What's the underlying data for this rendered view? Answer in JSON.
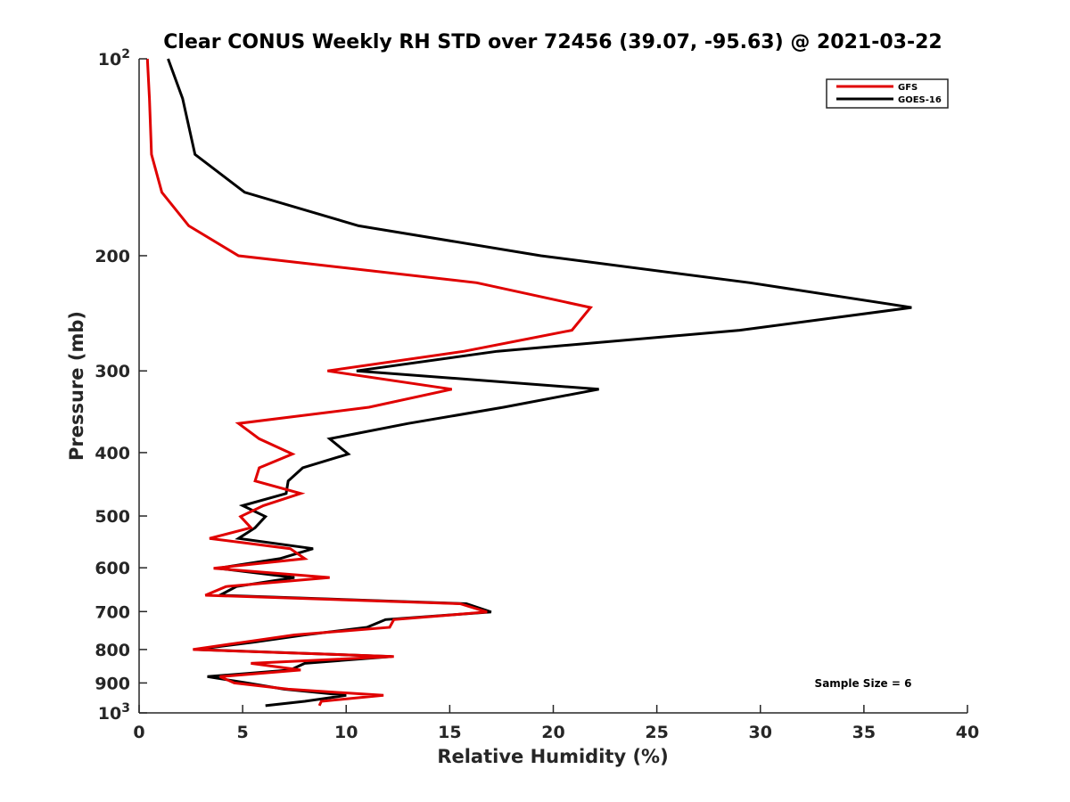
{
  "chart_data": {
    "type": "line",
    "title": "Clear CONUS Weekly RH STD over 72456 (39.07, -95.63) @ 2021-03-22",
    "xlabel": "Relative Humidity (%)",
    "ylabel": "Pressure (mb)",
    "xlim": [
      0,
      40
    ],
    "ylim": [
      100,
      1000
    ],
    "yscale": "log",
    "yreversed": true,
    "grid": false,
    "xticks": [
      0,
      5,
      10,
      15,
      20,
      25,
      30,
      35,
      40
    ],
    "xtick_labels": [
      "0",
      "5",
      "10",
      "15",
      "20",
      "25",
      "30",
      "35",
      "40"
    ],
    "yticks": [
      100,
      200,
      300,
      400,
      500,
      600,
      700,
      800,
      900,
      1000
    ],
    "ytick_labels": [
      "10^2",
      "200",
      "300",
      "400",
      "500",
      "600",
      "700",
      "800",
      "900",
      "10^3"
    ],
    "legend": {
      "placement": "top-right",
      "entries": [
        "GFS",
        "GOES-16"
      ]
    },
    "annotation": "Sample Size = 6",
    "series": [
      {
        "name": "GFS",
        "color": "#e00000",
        "pressure": [
          100,
          115,
          140,
          160,
          180,
          200,
          220,
          240,
          260,
          280,
          300,
          320,
          341,
          361,
          381,
          402,
          422,
          442,
          462,
          482,
          501,
          521,
          541,
          561,
          581,
          601,
          621,
          641,
          661,
          681,
          701,
          720,
          740,
          760,
          780,
          800,
          820,
          840,
          860,
          880,
          900,
          920,
          940,
          960,
          975
        ],
        "values": [
          0.4,
          0.5,
          0.6,
          1.1,
          2.4,
          4.8,
          16.3,
          21.8,
          20.9,
          15.7,
          9.1,
          15.1,
          11.1,
          4.8,
          5.8,
          7.4,
          5.8,
          5.6,
          7.8,
          6.0,
          4.9,
          5.4,
          3.4,
          7.3,
          8.0,
          3.6,
          9.2,
          4.2,
          3.2,
          15.5,
          16.8,
          12.3,
          12.1,
          7.5,
          5.0,
          2.6,
          12.3,
          5.4,
          7.8,
          3.9,
          4.6,
          7.2,
          11.8,
          8.8,
          8.7
        ],
        "values_note": "approximate"
      },
      {
        "name": "GOES-16",
        "color": "#000000",
        "pressure": [
          100,
          115,
          140,
          160,
          180,
          200,
          220,
          240,
          260,
          280,
          300,
          320,
          341,
          361,
          381,
          402,
          422,
          442,
          462,
          482,
          501,
          521,
          541,
          561,
          581,
          601,
          621,
          641,
          661,
          681,
          701,
          720,
          740,
          760,
          780,
          800,
          820,
          840,
          860,
          880,
          900,
          920,
          940,
          960,
          975
        ],
        "values": [
          1.4,
          2.1,
          2.7,
          5.1,
          10.6,
          19.4,
          29.5,
          37.3,
          29.0,
          17.3,
          10.5,
          22.2,
          17.6,
          13.0,
          9.2,
          10.1,
          7.9,
          7.2,
          7.1,
          5.0,
          6.1,
          5.6,
          4.8,
          8.4,
          6.8,
          3.8,
          7.5,
          4.7,
          3.9,
          15.8,
          17.0,
          11.9,
          11.0,
          8.0,
          5.5,
          2.7,
          12.2,
          8.0,
          7.3,
          3.3,
          5.2,
          7.0,
          10.0,
          8.0,
          6.1
        ],
        "values_note": "approximate"
      }
    ]
  }
}
